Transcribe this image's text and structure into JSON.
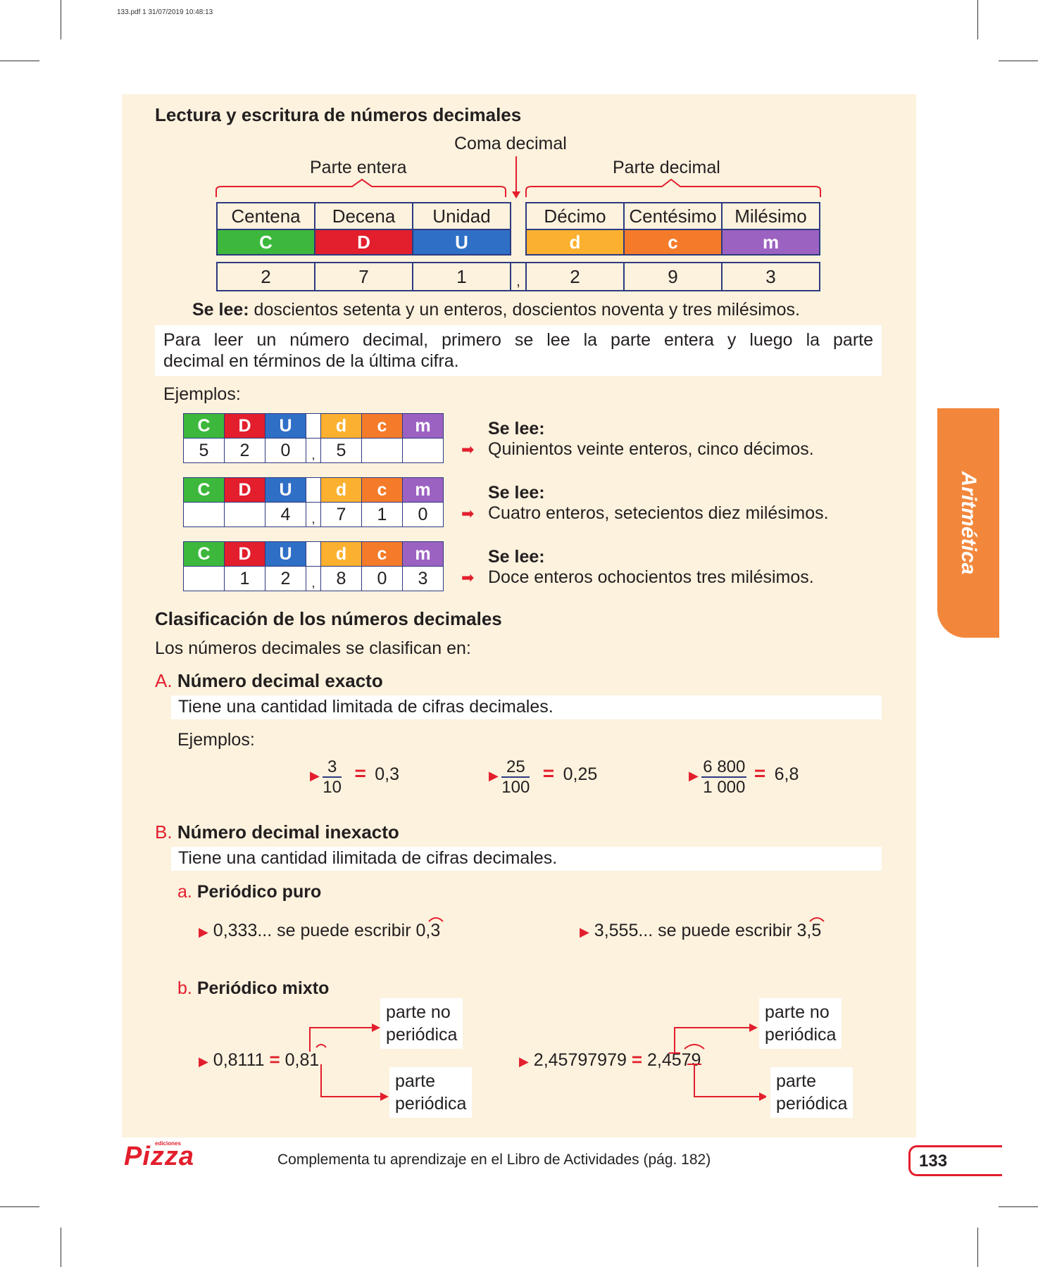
{
  "file_header": "133.pdf   1   31/07/2019   10:48:13",
  "section1": {
    "title": "Lectura y escritura de números decimales",
    "coma_decimal": "Coma decimal",
    "parte_entera": "Parte entera",
    "parte_decimal": "Parte decimal",
    "names": [
      "Centena",
      "Decena",
      "Unidad",
      "Décimo",
      "Centésimo",
      "Milésimo"
    ],
    "letters": [
      "C",
      "D",
      "U",
      "d",
      "c",
      "m"
    ],
    "digits": [
      "2",
      "7",
      "1",
      "2",
      "9",
      "3"
    ],
    "comma": ",",
    "se_lee_label": "Se lee:",
    "se_lee_text": " doscientos setenta y un enteros, doscientos noventa y tres milésimos.",
    "rule_line1": "Para leer un número decimal, primero se lee la parte entera y luego la parte",
    "rule_line2": "decimal en términos de la última cifra.",
    "examples_label": "Ejemplos:"
  },
  "examples": [
    {
      "digits": [
        "5",
        "2",
        "0",
        ",",
        "5",
        "",
        ""
      ],
      "se_lee": "Se lee:",
      "text": "Quinientos veinte enteros, cinco décimos."
    },
    {
      "digits": [
        "",
        "",
        "4",
        ",",
        "7",
        "1",
        "0"
      ],
      "se_lee": "Se lee:",
      "text": "Cuatro enteros, setecientos diez milésimos."
    },
    {
      "digits": [
        "",
        "1",
        "2",
        ",",
        "8",
        "0",
        "3"
      ],
      "se_lee": "Se lee:",
      "text": "Doce enteros ochocientos tres milésimos."
    }
  ],
  "section2": {
    "title": "Clasificación de los números decimales",
    "intro": "Los números decimales se clasifican en:",
    "A_letter": "A.",
    "A_title": "Número decimal exacto",
    "A_desc": "Tiene una cantidad limitada de cifras decimales.",
    "A_examples_label": "Ejemplos:",
    "fractions": [
      {
        "num": "3",
        "den": "10",
        "eq": "=",
        "result": "0,3"
      },
      {
        "num": "25",
        "den": "100",
        "eq": "=",
        "result": "0,25"
      },
      {
        "num": "6 800",
        "den": "1 000",
        "eq": "=",
        "result": "6,8"
      }
    ],
    "B_letter": "B.",
    "B_title": "Número decimal inexacto",
    "B_desc": "Tiene una cantidad ilimitada de cifras decimales.",
    "a_letter": "a.",
    "a_title": "Periódico puro",
    "puro": [
      {
        "text": "0,333... se puede escribir 0,",
        "period": "3"
      },
      {
        "text": "3,555... se puede escribir 3,",
        "period": "5"
      }
    ],
    "b_letter": "b.",
    "b_title": "Periódico mixto",
    "mixto": [
      {
        "left": "0,8111",
        "eq": "=",
        "int": "0,",
        "nonper": "8",
        "per": "1"
      },
      {
        "left": "2,45797979",
        "eq": "=",
        "int": "2,",
        "nonper": "45",
        "per": "79"
      }
    ],
    "label_no_periodica_1": "parte no",
    "label_no_periodica_2": "periódica",
    "label_periodica_1": "parte",
    "label_periodica_2": "periódica"
  },
  "side_tab": "Aritmética",
  "footer": {
    "logo": "Pizza",
    "logo_small": "ediciones",
    "text": "Complementa tu aprendizaje en el Libro de Actividades (pág. 182)",
    "page_number": "133"
  },
  "colors": {
    "panel": "#fcf2de",
    "green": "#3db83c",
    "red": "#e31e2d",
    "blue": "#2f6fc6",
    "yellow": "#fbb12f",
    "orange": "#f47b2a",
    "purple": "#9b62c1",
    "border": "#2e3a80"
  }
}
